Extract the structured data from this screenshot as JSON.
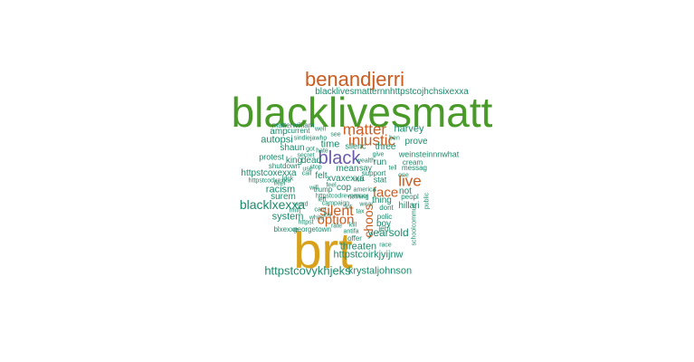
{
  "palette": {
    "green": "#4a9a2a",
    "orange": "#cc5b1f",
    "gold": "#d8a11c",
    "purple": "#6a5aa8",
    "teal": "#1c8a6a"
  },
  "words": [
    {
      "text": "blacklivesmatt",
      "color": "green"
    },
    {
      "text": "brt",
      "color": "gold"
    },
    {
      "text": "benandjerri",
      "color": "orange"
    },
    {
      "text": "blacklivesmatternnhttpstcojhchsixexxa",
      "color": "teal"
    },
    {
      "text": "matter",
      "color": "orange"
    },
    {
      "text": "injustic",
      "color": "orange"
    },
    {
      "text": "black",
      "color": "purple"
    },
    {
      "text": "live",
      "color": "orange"
    },
    {
      "text": "face",
      "color": "orange"
    },
    {
      "text": "silent",
      "color": "orange"
    },
    {
      "text": "option",
      "color": "orange"
    },
    {
      "text": "choos",
      "color": "orange"
    },
    {
      "text": "blacklxexxa",
      "color": "teal"
    },
    {
      "text": "httpstcovykhjeks",
      "color": "teal"
    },
    {
      "text": "krystaljohnson",
      "color": "teal"
    },
    {
      "text": "httpstcoirkjyijnw",
      "color": "teal"
    },
    {
      "text": "yearsold",
      "color": "teal"
    },
    {
      "text": "threaten",
      "color": "teal"
    },
    {
      "text": "autopsi",
      "color": "teal"
    },
    {
      "text": "harvey",
      "color": "teal"
    },
    {
      "text": "prove",
      "color": "teal"
    },
    {
      "text": "time",
      "color": "teal"
    },
    {
      "text": "three",
      "color": "teal"
    },
    {
      "text": "shaun",
      "color": "teal"
    },
    {
      "text": "silenc",
      "color": "teal"
    },
    {
      "text": "weinsteinnnwhat",
      "color": "teal"
    },
    {
      "text": "king",
      "color": "teal"
    },
    {
      "text": "dead",
      "color": "teal"
    },
    {
      "text": "mean",
      "color": "teal"
    },
    {
      "text": "say",
      "color": "teal"
    },
    {
      "text": "run",
      "color": "teal"
    },
    {
      "text": "httpstcoxexxa",
      "color": "teal"
    },
    {
      "text": "felt",
      "color": "teal"
    },
    {
      "text": "xvaxexxa",
      "color": "teal"
    },
    {
      "text": "stat",
      "color": "teal"
    },
    {
      "text": "racism",
      "color": "teal"
    },
    {
      "text": "cop",
      "color": "teal"
    },
    {
      "text": "not",
      "color": "teal"
    },
    {
      "text": "surem",
      "color": "teal"
    },
    {
      "text": "thing",
      "color": "teal"
    },
    {
      "text": "system",
      "color": "teal"
    },
    {
      "text": "boy",
      "color": "teal"
    },
    {
      "text": "hillari",
      "color": "teal"
    },
    {
      "text": "amp",
      "color": "teal"
    },
    {
      "text": "protest",
      "color": "teal"
    },
    {
      "text": "current",
      "color": "teal"
    },
    {
      "text": "will",
      "color": "teal"
    },
    {
      "text": "trump",
      "color": "teal"
    },
    {
      "text": "support",
      "color": "teal"
    },
    {
      "text": "messag",
      "color": "teal"
    },
    {
      "text": "cream",
      "color": "teal"
    },
    {
      "text": "georgetown",
      "color": "teal"
    },
    {
      "text": "blxexxe",
      "color": "teal"
    },
    {
      "text": "offer",
      "color": "teal"
    },
    {
      "text": "race",
      "color": "teal"
    },
    {
      "text": "jerri",
      "color": "teal"
    },
    {
      "text": "peopl",
      "color": "teal"
    },
    {
      "text": "polic",
      "color": "teal"
    },
    {
      "text": "public",
      "color": "teal"
    },
    {
      "text": "schoolcommun",
      "color": "teal"
    },
    {
      "text": "dont",
      "color": "teal"
    },
    {
      "text": "shutdown",
      "color": "teal"
    },
    {
      "text": "secret",
      "color": "teal"
    },
    {
      "text": "httpstcodrevpruuor",
      "color": "teal"
    },
    {
      "text": "httpstcodxexxa",
      "color": "teal"
    },
    {
      "text": "campaign",
      "color": "teal"
    },
    {
      "text": "america",
      "color": "teal"
    },
    {
      "text": "matterwilliam",
      "color": "teal"
    },
    {
      "text": "sindiejawho",
      "color": "teal"
    },
    {
      "text": "ben",
      "color": "teal"
    },
    {
      "text": "ldck",
      "color": "teal"
    },
    {
      "text": "wealth",
      "color": "teal"
    },
    {
      "text": "white",
      "color": "teal"
    },
    {
      "text": "kill",
      "color": "teal"
    },
    {
      "text": "nnlfj",
      "color": "teal"
    },
    {
      "text": "rate",
      "color": "teal"
    },
    {
      "text": "antifa",
      "color": "teal"
    },
    {
      "text": "rich",
      "color": "teal"
    },
    {
      "text": "left",
      "color": "teal"
    },
    {
      "text": "wear",
      "color": "teal"
    },
    {
      "text": "feel",
      "color": "teal"
    },
    {
      "text": "tell",
      "color": "teal"
    },
    {
      "text": "hate",
      "color": "teal"
    },
    {
      "text": "use",
      "color": "teal"
    },
    {
      "text": "stop",
      "color": "teal"
    },
    {
      "text": "give",
      "color": "teal"
    },
    {
      "text": "lot",
      "color": "teal"
    },
    {
      "text": "tax",
      "color": "teal"
    },
    {
      "text": "cant",
      "color": "teal"
    },
    {
      "text": "one",
      "color": "teal"
    },
    {
      "text": "word",
      "color": "teal"
    },
    {
      "text": "nothing",
      "color": "teal"
    },
    {
      "text": "well",
      "color": "teal"
    },
    {
      "text": "see",
      "color": "teal"
    },
    {
      "text": "got",
      "color": "teal"
    },
    {
      "text": "call",
      "color": "teal"
    },
    {
      "text": "lmi",
      "color": "teal"
    },
    {
      "text": "httpst",
      "color": "teal"
    },
    {
      "text": "ifeel",
      "color": "teal"
    }
  ]
}
